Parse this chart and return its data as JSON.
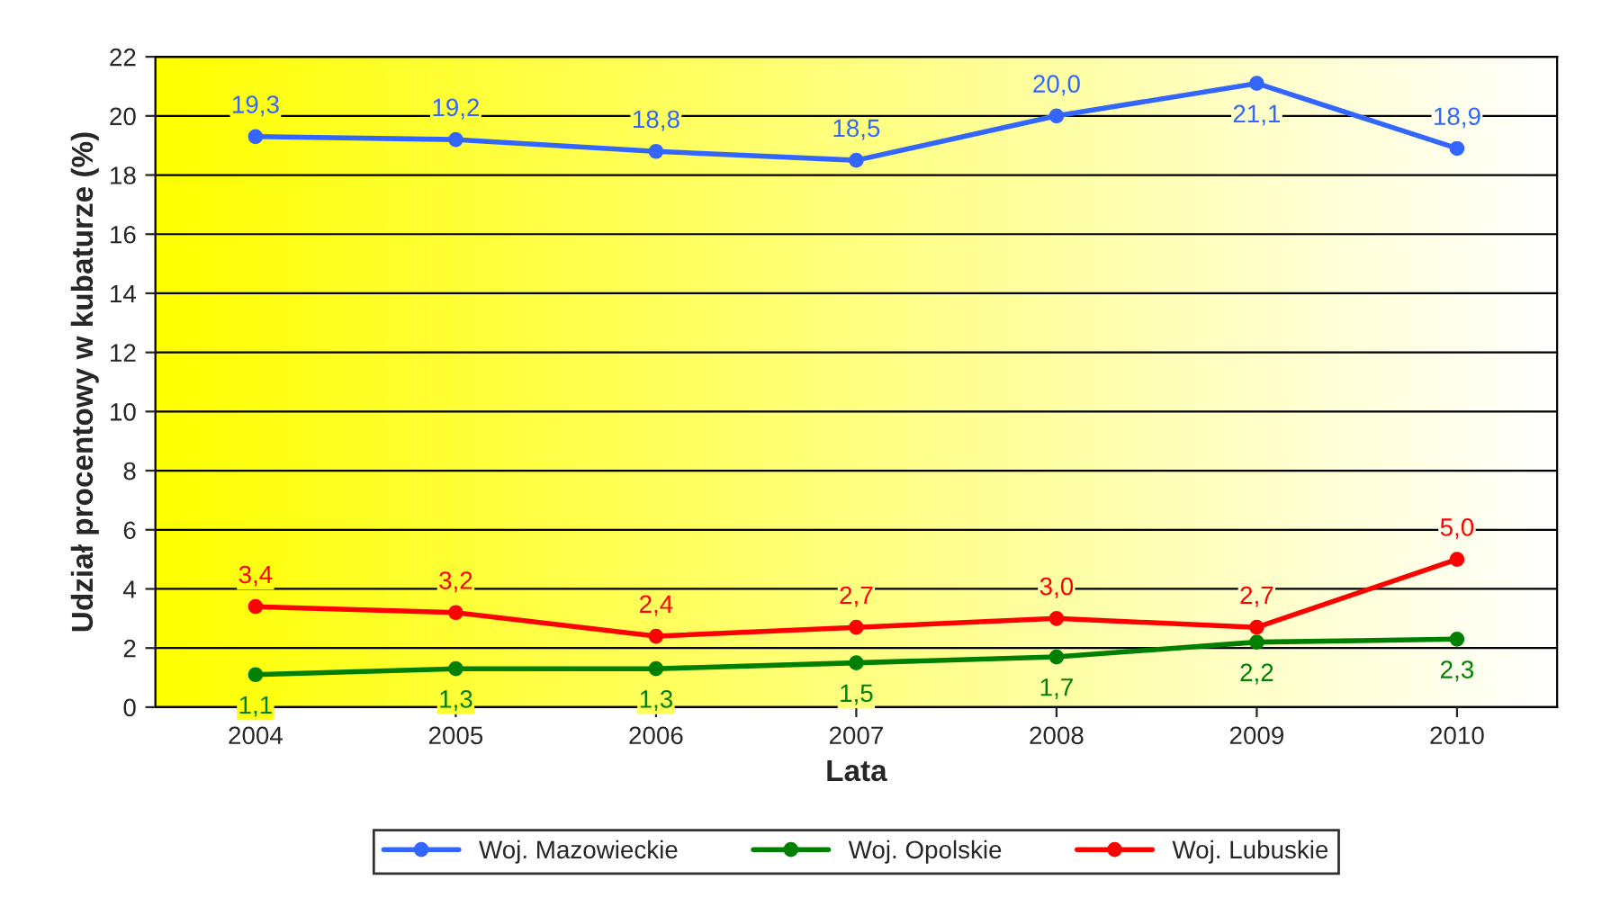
{
  "chart_data": {
    "type": "line",
    "xlabel": "Lata",
    "ylabel": "Udział procentowy w kubaturze (%)",
    "categories": [
      "2004",
      "2005",
      "2006",
      "2007",
      "2008",
      "2009",
      "2010"
    ],
    "series": [
      {
        "name": "Woj. Mazowieckie",
        "color": "#3366ff",
        "values": [
          19.3,
          19.2,
          18.8,
          18.5,
          20.0,
          21.1,
          18.9
        ],
        "value_labels": [
          "19,3",
          "19,2",
          "18,8",
          "18,5",
          "20,0",
          "21,1",
          "18,9"
        ]
      },
      {
        "name": "Woj. Opolskie",
        "color": "#008000",
        "values": [
          1.1,
          1.3,
          1.3,
          1.5,
          1.7,
          2.2,
          2.3
        ],
        "value_labels": [
          "1,1",
          "1,3",
          "1,3",
          "1,5",
          "1,7",
          "2,2",
          "2,3"
        ]
      },
      {
        "name": "Woj. Lubuskie",
        "color": "#ff0000",
        "values": [
          3.4,
          3.2,
          2.4,
          2.7,
          3.0,
          2.7,
          5.0
        ],
        "value_labels": [
          "3,4",
          "3,2",
          "2,4",
          "2,7",
          "3,0",
          "2,7",
          "5,0"
        ]
      }
    ],
    "ylim": [
      0,
      22
    ],
    "yticks": [
      0,
      2,
      4,
      6,
      8,
      10,
      12,
      14,
      16,
      18,
      20,
      22
    ],
    "grid": "y",
    "legend": "bottom",
    "marker": "circle",
    "line_style": "solid"
  }
}
